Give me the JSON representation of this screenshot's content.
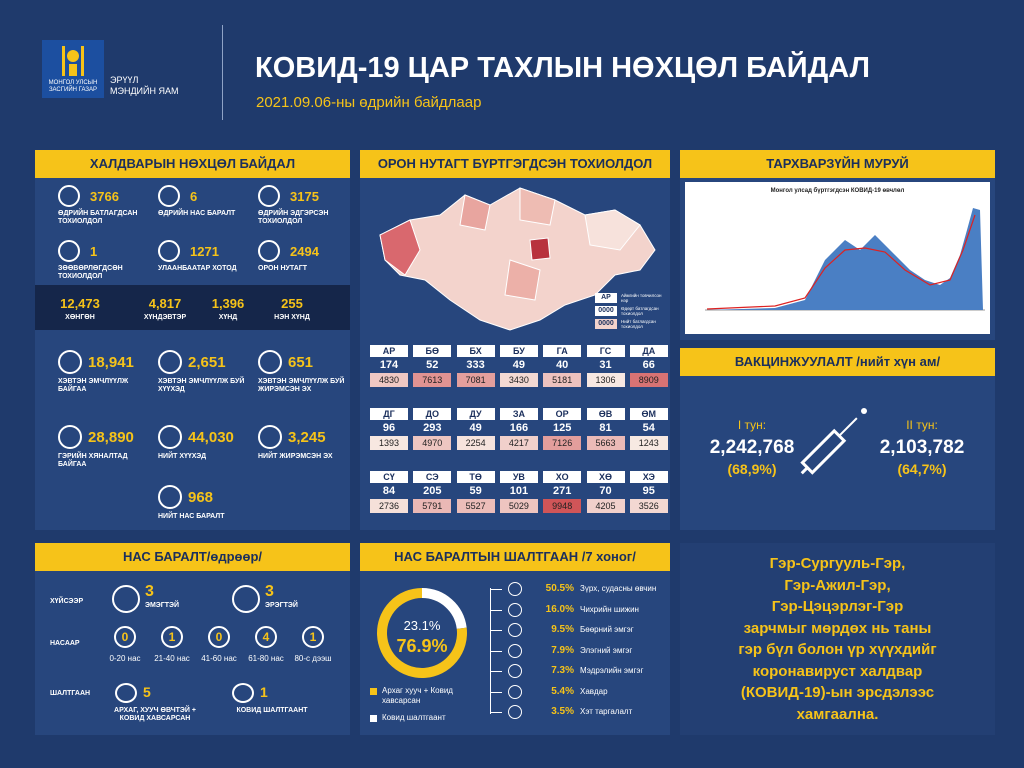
{
  "header": {
    "org": [
      "МОНГОЛ УЛСЫН",
      "ЗАСГИЙН ГАЗАР"
    ],
    "ministry": [
      "ЭРҮҮЛ",
      "МЭНДИЙН ЯАМ"
    ],
    "title": "КОВИД-19 ЦАР ТАХЛЫН НӨХЦӨЛ БАЙДАЛ",
    "subtitle": "2021.09.06-ны өдрийн байдлаар"
  },
  "infection": {
    "title": "ХАЛДВАРЫН НӨХЦӨЛ БАЙДАЛ",
    "stats": [
      {
        "value": 3766,
        "label": "ӨДРИЙН БАТЛАГДСАН ТОХИОЛДОЛ"
      },
      {
        "value": 6,
        "label": "ӨДРИЙН НАС БАРАЛТ"
      },
      {
        "value": 3175,
        "label": "ӨДРИЙН ЭДГЭРСЭН ТОХИОЛДОЛ"
      },
      {
        "value": 1,
        "label": "ЗӨӨВӨРЛӨГДСӨН ТОХИОЛДОЛ"
      },
      {
        "value": 1271,
        "label": "УЛААНБААТАР ХОТОД"
      },
      {
        "value": 2494,
        "label": "ОРОН НУТАГТ"
      }
    ],
    "severity": [
      {
        "value": "12,473",
        "label": "ХӨНГӨН"
      },
      {
        "value": "4,817",
        "label": "ХҮНДЭВТЭР"
      },
      {
        "value": "1,396",
        "label": "ХҮНД"
      },
      {
        "value": "255",
        "label": "НЭН ХҮНД"
      }
    ],
    "care": [
      {
        "value": "18,941",
        "label": "ХЭВТЭН ЭМЧЛҮҮЛЖ БАЙГАА"
      },
      {
        "value": "2,651",
        "label": "ХЭВТЭН ЭМЧЛҮҮЛЖ БУЙ ХҮҮХЭД"
      },
      {
        "value": "651",
        "label": "ХЭВТЭН ЭМЧЛҮҮЛЖ БУЙ ЖИРЭМСЭН ЭХ"
      },
      {
        "value": "28,890",
        "label": "ГЭРИЙН ХЯНАЛТАД БАЙГАА"
      },
      {
        "value": "44,030",
        "label": "НИЙТ ХҮҮХЭД"
      },
      {
        "value": "3,245",
        "label": "НИЙТ ЖИРЭМСЭН ЭХ"
      },
      {
        "value": "968",
        "label": "НИЙТ НАС БАРАЛТ"
      }
    ]
  },
  "regional": {
    "title": "ОРОН НУТАГТ БҮРТГЭГДСЭН ТОХИОЛДОЛ",
    "legend": [
      {
        "value": "АР",
        "label": "Аймгийн товчилсон нэр"
      },
      {
        "value": "0000",
        "label": "Өдөрт батлагдсан тохиолдол"
      },
      {
        "value": "0000",
        "label": "Нийт батлагдсан тохиолдол"
      }
    ],
    "provinces": [
      [
        "АР",
        174,
        4830
      ],
      [
        "БӨ",
        52,
        7613
      ],
      [
        "БХ",
        333,
        7081
      ],
      [
        "БУ",
        49,
        3430
      ],
      [
        "ГА",
        40,
        5181
      ],
      [
        "ГС",
        31,
        1306
      ],
      [
        "ДА",
        66,
        8909
      ],
      [
        "ДГ",
        96,
        1393
      ],
      [
        "ДО",
        293,
        4970
      ],
      [
        "ДУ",
        49,
        2254
      ],
      [
        "ЗА",
        166,
        4217
      ],
      [
        "ОР",
        125,
        7126
      ],
      [
        "ӨВ",
        81,
        5663
      ],
      [
        "ӨМ",
        54,
        1243
      ],
      [
        "СҮ",
        84,
        2736
      ],
      [
        "СЭ",
        205,
        5791
      ],
      [
        "ТӨ",
        59,
        5527
      ],
      [
        "УВ",
        101,
        5029
      ],
      [
        "ХО",
        271,
        9948
      ],
      [
        "ХӨ",
        70,
        4205
      ],
      [
        "ХЭ",
        95,
        3526
      ]
    ]
  },
  "epi": {
    "title": "ТАРХВАРЗҮЙН МУРУЙ",
    "chart_title": "Монгол улсад бүртгэгдсэн КОВИД-19 өвчлөл"
  },
  "vaccine": {
    "title": "ВАКЦИНЖУУЛАЛТ /нийт хүн ам/",
    "doses": [
      {
        "label": "I тун:",
        "value": "2,242,768",
        "pct": "(68,9%)"
      },
      {
        "label": "II тун:",
        "value": "2,103,782",
        "pct": "(64,7%)"
      }
    ]
  },
  "deaths": {
    "title": "НАС БАРАЛТ/өдрөөр/",
    "sex_label": "ХҮЙСЭЭР",
    "sex": [
      {
        "value": 3,
        "label": "ЭМЭГТЭЙ"
      },
      {
        "value": 3,
        "label": "ЭРЭГТЭЙ"
      }
    ],
    "age_label": "НАСААР",
    "ages": [
      {
        "value": 0,
        "label": "0-20 нас"
      },
      {
        "value": 1,
        "label": "21-40 нас"
      },
      {
        "value": 0,
        "label": "41-60 нас"
      },
      {
        "value": 4,
        "label": "61-80 нас"
      },
      {
        "value": 1,
        "label": "80-с дээш"
      }
    ],
    "cause_label": "ШАЛТГААН",
    "causes": [
      {
        "value": 5,
        "label": "АРХАГ, ХУУЧ ӨВЧТЭЙ + КОВИД ХАВСАРСАН"
      },
      {
        "value": 1,
        "label": "КОВИД ШАЛТГААНТ"
      }
    ]
  },
  "causes": {
    "title": "НАС БАРАЛТЫН ШАЛТГААН /7 хоног/",
    "donut": [
      {
        "value": 23.1,
        "label": "23.1%",
        "name": "Ковид шалтгаант"
      },
      {
        "value": 76.9,
        "label": "76.9%",
        "name": "Архаг хууч + Ковид хавсарсан"
      }
    ],
    "items": [
      {
        "value": "50.5%",
        "label": "Зүрх, судасны өвчин"
      },
      {
        "value": "16.0%",
        "label": "Чихрийн шижин"
      },
      {
        "value": "9.5%",
        "label": "Бөөрний эмгэг"
      },
      {
        "value": "7.9%",
        "label": "Элэгний эмгэг"
      },
      {
        "value": "7.3%",
        "label": "Мэдрэлийн эмгэг"
      },
      {
        "value": "5.4%",
        "label": "Хавдар"
      },
      {
        "value": "3.5%",
        "label": "Хэт таргалалт"
      }
    ]
  },
  "message": [
    "Гэр-Сургууль-Гэр,",
    "Гэр-Ажил-Гэр,",
    "Гэр-Цэцэрлэг-Гэр",
    "зарчмыг мөрдөх нь таны",
    "гэр бүл болон үр хүүхдийг",
    "коронавируст халдвар",
    "(КОВИД-19)-ын эрсдэлээс",
    "хамгаална."
  ]
}
